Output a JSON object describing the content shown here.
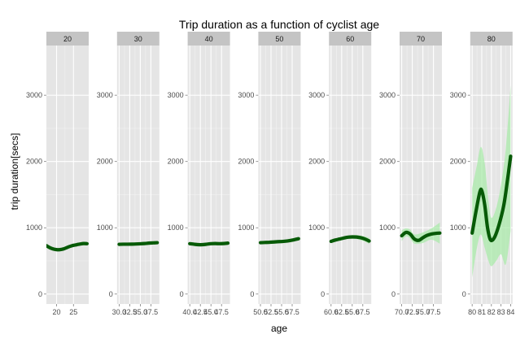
{
  "chart_data": {
    "type": "line",
    "title": "Trip duration as a function of cyclist age",
    "xlabel": "age",
    "ylabel": "trip duration[secs]",
    "ylim": [
      -150,
      3750
    ],
    "y_ticks": [
      0,
      1000,
      2000,
      3000
    ],
    "y_tick_labels": [
      "0",
      "1000",
      "2000",
      "3000"
    ],
    "grid": true,
    "legend": "none",
    "colors": {
      "panel_bg": "#e5e5e5",
      "grid_major": "#ffffff",
      "grid_minor": "#f2f2f2",
      "strip_bg": "#c4c4c4",
      "line": "#075a07",
      "ribbon": "#a6eba6"
    },
    "facets": [
      {
        "label": "20",
        "xlim": [
          17,
          29.5
        ],
        "x_ticks": [
          20,
          25
        ],
        "x_tick_labels": [
          "20",
          "25"
        ],
        "points": [
          [
            17,
            730
          ],
          [
            18,
            700
          ],
          [
            19,
            680
          ],
          [
            20,
            670
          ],
          [
            21,
            670
          ],
          [
            22,
            680
          ],
          [
            23,
            700
          ],
          [
            24,
            720
          ],
          [
            25,
            735
          ],
          [
            26,
            745
          ],
          [
            27,
            755
          ],
          [
            28,
            762
          ],
          [
            29,
            760
          ]
        ],
        "ribbon_upper": [
          [
            17,
            755
          ],
          [
            19,
            700
          ],
          [
            21,
            690
          ],
          [
            23,
            718
          ],
          [
            25,
            750
          ],
          [
            27,
            772
          ],
          [
            29,
            785
          ]
        ],
        "ribbon_lower": [
          [
            17,
            705
          ],
          [
            19,
            660
          ],
          [
            21,
            650
          ],
          [
            23,
            682
          ],
          [
            25,
            720
          ],
          [
            27,
            738
          ],
          [
            29,
            735
          ]
        ]
      },
      {
        "label": "30",
        "xlim": [
          29.5,
          39.5
        ],
        "x_ticks": [
          30,
          32.5,
          35,
          37.5
        ],
        "x_tick_labels": [
          "30.0",
          "32.5",
          "35.0",
          "37.5"
        ],
        "points": [
          [
            30,
            750
          ],
          [
            31,
            752
          ],
          [
            32,
            752
          ],
          [
            33,
            753
          ],
          [
            34,
            755
          ],
          [
            35,
            758
          ],
          [
            36,
            762
          ],
          [
            37,
            768
          ],
          [
            38,
            772
          ],
          [
            39,
            775
          ]
        ],
        "ribbon_upper": [
          [
            30,
            765
          ],
          [
            33,
            765
          ],
          [
            36,
            775
          ],
          [
            39,
            790
          ]
        ],
        "ribbon_lower": [
          [
            30,
            735
          ],
          [
            33,
            741
          ],
          [
            36,
            749
          ],
          [
            39,
            760
          ]
        ]
      },
      {
        "label": "40",
        "xlim": [
          39.5,
          49.5
        ],
        "x_ticks": [
          40,
          42.5,
          45,
          47.5
        ],
        "x_tick_labels": [
          "40.0",
          "42.5",
          "45.0",
          "47.5"
        ],
        "points": [
          [
            40,
            760
          ],
          [
            41,
            752
          ],
          [
            42,
            745
          ],
          [
            43,
            745
          ],
          [
            44,
            752
          ],
          [
            45,
            760
          ],
          [
            46,
            762
          ],
          [
            47,
            760
          ],
          [
            48,
            762
          ],
          [
            49,
            768
          ]
        ],
        "ribbon_upper": [
          [
            40,
            778
          ],
          [
            43,
            760
          ],
          [
            46,
            778
          ],
          [
            49,
            788
          ]
        ],
        "ribbon_lower": [
          [
            40,
            742
          ],
          [
            43,
            730
          ],
          [
            46,
            746
          ],
          [
            49,
            748
          ]
        ]
      },
      {
        "label": "50",
        "xlim": [
          49.5,
          59.5
        ],
        "x_ticks": [
          50,
          52.5,
          55,
          57.5
        ],
        "x_tick_labels": [
          "50.0",
          "52.5",
          "55.0",
          "57.5"
        ],
        "points": [
          [
            50,
            775
          ],
          [
            51,
            778
          ],
          [
            52,
            780
          ],
          [
            53,
            785
          ],
          [
            54,
            790
          ],
          [
            55,
            792
          ],
          [
            56,
            798
          ],
          [
            57,
            808
          ],
          [
            58,
            820
          ],
          [
            59,
            835
          ]
        ],
        "ribbon_upper": [
          [
            50,
            792
          ],
          [
            53,
            800
          ],
          [
            56,
            815
          ],
          [
            59,
            860
          ]
        ],
        "ribbon_lower": [
          [
            50,
            758
          ],
          [
            53,
            770
          ],
          [
            56,
            781
          ],
          [
            59,
            810
          ]
        ]
      },
      {
        "label": "60",
        "xlim": [
          59.5,
          69.5
        ],
        "x_ticks": [
          60,
          62.5,
          65,
          67.5
        ],
        "x_tick_labels": [
          "60.0",
          "62.5",
          "65.0",
          "67.5"
        ],
        "points": [
          [
            60,
            795
          ],
          [
            61,
            815
          ],
          [
            62,
            830
          ],
          [
            63,
            845
          ],
          [
            64,
            858
          ],
          [
            65,
            862
          ],
          [
            66,
            860
          ],
          [
            67,
            850
          ],
          [
            68,
            830
          ],
          [
            69,
            800
          ]
        ],
        "ribbon_upper": [
          [
            60,
            820
          ],
          [
            62,
            852
          ],
          [
            64,
            882
          ],
          [
            66,
            890
          ],
          [
            68,
            868
          ],
          [
            69,
            845
          ]
        ],
        "ribbon_lower": [
          [
            60,
            770
          ],
          [
            62,
            808
          ],
          [
            64,
            834
          ],
          [
            66,
            830
          ],
          [
            68,
            792
          ],
          [
            69,
            755
          ]
        ]
      },
      {
        "label": "70",
        "xlim": [
          69.5,
          79.5
        ],
        "x_ticks": [
          70,
          72.5,
          75,
          77.5
        ],
        "x_tick_labels": [
          "70.0",
          "72.5",
          "75.0",
          "77.5"
        ],
        "points": [
          [
            70,
            880
          ],
          [
            71,
            930
          ],
          [
            72,
            905
          ],
          [
            73,
            830
          ],
          [
            74,
            810
          ],
          [
            75,
            850
          ],
          [
            76,
            885
          ],
          [
            77,
            905
          ],
          [
            78,
            915
          ],
          [
            79,
            920
          ]
        ],
        "ribbon_upper": [
          [
            70,
            960
          ],
          [
            71,
            990
          ],
          [
            72,
            970
          ],
          [
            73,
            900
          ],
          [
            75,
            930
          ],
          [
            77,
            990
          ],
          [
            79,
            1080
          ]
        ],
        "ribbon_lower": [
          [
            70,
            800
          ],
          [
            71,
            870
          ],
          [
            72,
            840
          ],
          [
            73,
            760
          ],
          [
            75,
            770
          ],
          [
            77,
            820
          ],
          [
            79,
            760
          ]
        ]
      },
      {
        "label": "80",
        "xlim": [
          79.8,
          84.2
        ],
        "x_ticks": [
          80,
          81,
          82,
          83,
          84
        ],
        "x_tick_labels": [
          "80",
          "81",
          "82",
          "83",
          "84"
        ],
        "points": [
          [
            80,
            920
          ],
          [
            80.4,
            1250
          ],
          [
            80.8,
            1540
          ],
          [
            81,
            1560
          ],
          [
            81.3,
            1350
          ],
          [
            81.6,
            1000
          ],
          [
            81.9,
            820
          ],
          [
            82.3,
            850
          ],
          [
            82.8,
            1050
          ],
          [
            83.3,
            1350
          ],
          [
            83.7,
            1750
          ],
          [
            84,
            2080
          ]
        ],
        "ribbon_upper": [
          [
            80,
            1600
          ],
          [
            80.5,
            1950
          ],
          [
            80.9,
            2220
          ],
          [
            81.3,
            1980
          ],
          [
            81.7,
            1400
          ],
          [
            82,
            1150
          ],
          [
            82.5,
            1300
          ],
          [
            83,
            1650
          ],
          [
            83.5,
            2200
          ],
          [
            84,
            3150
          ]
        ],
        "ribbon_lower": [
          [
            80,
            250
          ],
          [
            80.5,
            700
          ],
          [
            80.9,
            900
          ],
          [
            81.3,
            700
          ],
          [
            81.7,
            500
          ],
          [
            82,
            420
          ],
          [
            82.5,
            500
          ],
          [
            83,
            600
          ],
          [
            83.5,
            450
          ],
          [
            84,
            950
          ]
        ]
      }
    ]
  }
}
